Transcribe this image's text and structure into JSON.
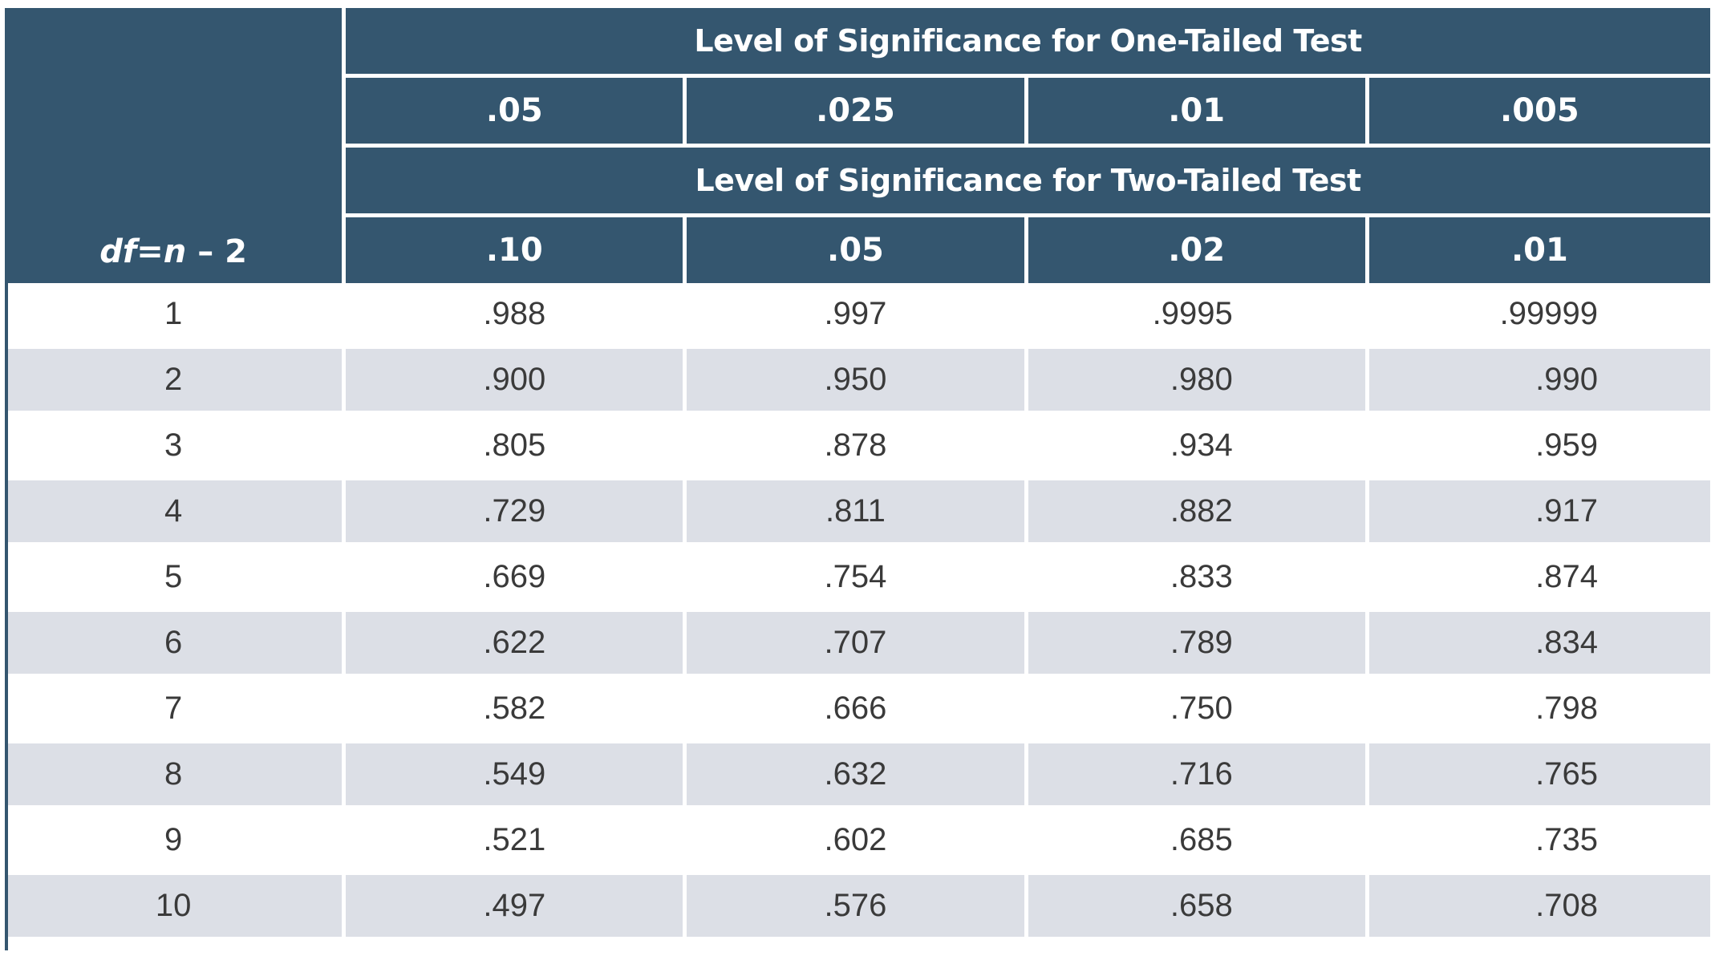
{
  "table": {
    "df_header": {
      "var_df": "df",
      "eq": "=",
      "var_n": "n",
      "minus": "–",
      "two": "2"
    },
    "one_tailed_label": "Level of Significance for One-Tailed Test",
    "two_tailed_label": "Level of Significance for Two-Tailed Test",
    "one_tailed_levels": [
      ".05",
      ".025",
      ".01",
      ".005"
    ],
    "two_tailed_levels": [
      ".10",
      ".05",
      ".02",
      ".01"
    ],
    "rows": [
      {
        "df": "1",
        "values": [
          ".988",
          ".997",
          ".9995",
          ".99999"
        ]
      },
      {
        "df": "2",
        "values": [
          ".900",
          ".950",
          ".980",
          ".990"
        ]
      },
      {
        "df": "3",
        "values": [
          ".805",
          ".878",
          ".934",
          ".959"
        ]
      },
      {
        "df": "4",
        "values": [
          ".729",
          ".811",
          ".882",
          ".917"
        ]
      },
      {
        "df": "5",
        "values": [
          ".669",
          ".754",
          ".833",
          ".874"
        ]
      },
      {
        "df": "6",
        "values": [
          ".622",
          ".707",
          ".789",
          ".834"
        ]
      },
      {
        "df": "7",
        "values": [
          ".582",
          ".666",
          ".750",
          ".798"
        ]
      },
      {
        "df": "8",
        "values": [
          ".549",
          ".632",
          ".716",
          ".765"
        ]
      },
      {
        "df": "9",
        "values": [
          ".521",
          ".602",
          ".685",
          ".735"
        ]
      },
      {
        "df": "10",
        "values": [
          ".497",
          ".576",
          ".658",
          ".708"
        ]
      }
    ]
  },
  "colors": {
    "header_bg": "#34566f",
    "header_text": "#ffffff",
    "row_alt_bg": "#dcdfe6",
    "cell_text": "#3a3a3a"
  }
}
